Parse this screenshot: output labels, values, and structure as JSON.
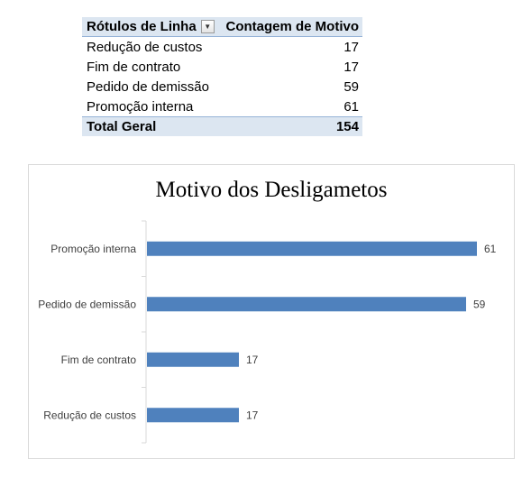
{
  "pivot_table": {
    "header": {
      "row_labels": "Rótulos de Linha",
      "count_label": "Contagem de Motivo"
    },
    "rows": [
      {
        "label": "Redução de custos",
        "value": "17"
      },
      {
        "label": "Fim de contrato",
        "value": "17"
      },
      {
        "label": "Pedido de demissão",
        "value": "59"
      },
      {
        "label": "Promoção interna",
        "value": "61"
      }
    ],
    "total": {
      "label": "Total Geral",
      "value": "154"
    }
  },
  "chart_data": {
    "type": "bar",
    "orientation": "horizontal",
    "title": "Motivo dos Desligametos",
    "categories": [
      "Promoção interna",
      "Pedido de demissão",
      "Fim de contrato",
      "Redução de custos"
    ],
    "values": [
      61,
      59,
      17,
      17
    ],
    "data_labels": true,
    "xlim": [
      0,
      70
    ],
    "gridlines": false,
    "legend": "none",
    "bar_color": "#4f81bd"
  }
}
